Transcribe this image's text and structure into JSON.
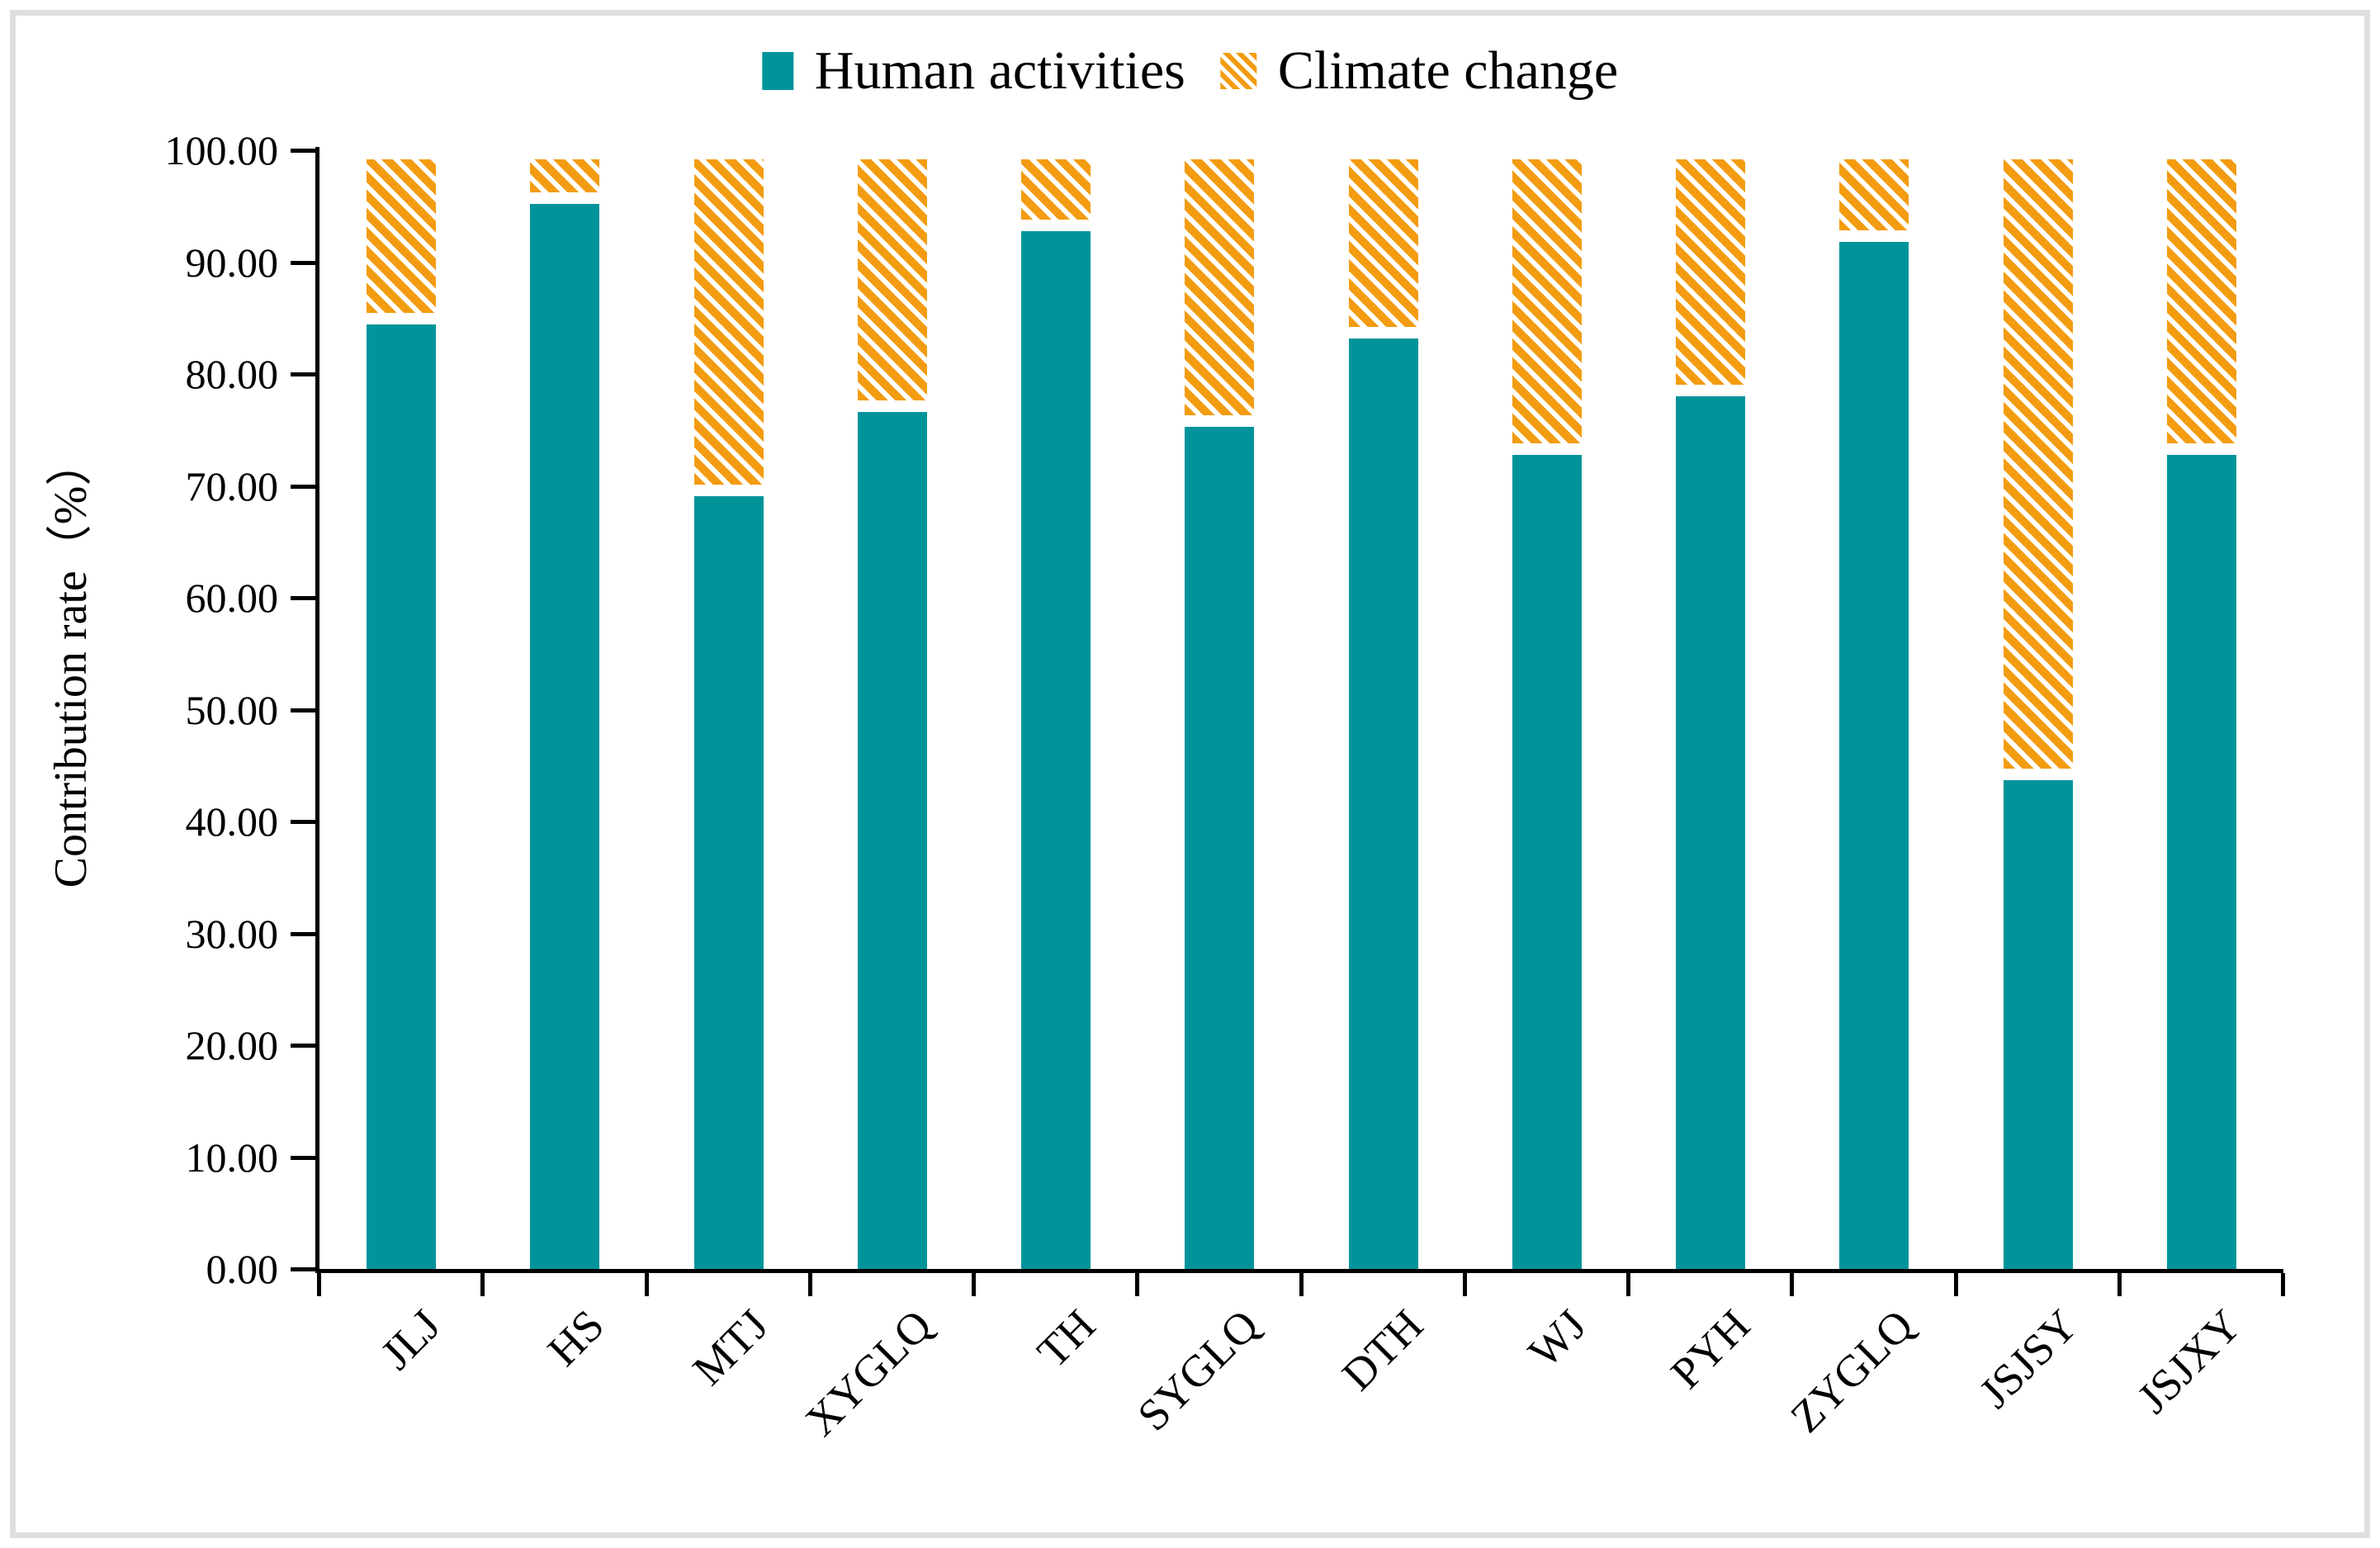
{
  "figure": {
    "background": "#ffffff",
    "border_color": "#dedede"
  },
  "colors": {
    "human_activities": "#00949A",
    "climate_change": "#F39C11",
    "axis": "#000000"
  },
  "legend": [
    {
      "label": "Human activities",
      "swatch": "solid-teal-square"
    },
    {
      "label": "Climate change",
      "swatch": "orange-diagonal-hatch-square"
    }
  ],
  "y_axis": {
    "title": "Contribution rate（%）",
    "ticks": [
      "0.00",
      "10.00",
      "20.00",
      "30.00",
      "40.00",
      "50.00",
      "60.00",
      "70.00",
      "80.00",
      "90.00",
      "100.00"
    ],
    "step": 10,
    "min": 0,
    "max": 100
  },
  "chart_data": {
    "type": "bar",
    "stacked": true,
    "title": "",
    "xlabel": "",
    "ylabel": "Contribution rate（%）",
    "ylim": [
      0,
      100
    ],
    "ytick_step": 10,
    "grid": false,
    "legend_position": "top-center",
    "x_label_rotation_deg": -45,
    "categories": [
      "JLJ",
      "HS",
      "MTJ",
      "XYGLQ",
      "TH",
      "SYGLQ",
      "DTH",
      "WJ",
      "PYH",
      "ZYGLQ",
      "JSJSY",
      "JSJXY"
    ],
    "series": [
      {
        "name": "Human activities",
        "style": "solid",
        "color": "#00949A",
        "values": [
          84.4,
          95.2,
          69.1,
          76.6,
          92.8,
          75.3,
          83.2,
          72.8,
          78.0,
          91.8,
          43.7,
          72.8
        ]
      },
      {
        "name": "Climate change",
        "style": "diagonal-hatch",
        "color": "#F39C11",
        "values": [
          15.6,
          4.8,
          30.9,
          23.4,
          7.2,
          24.7,
          16.8,
          27.2,
          22.0,
          8.2,
          56.3,
          27.2
        ]
      }
    ]
  }
}
